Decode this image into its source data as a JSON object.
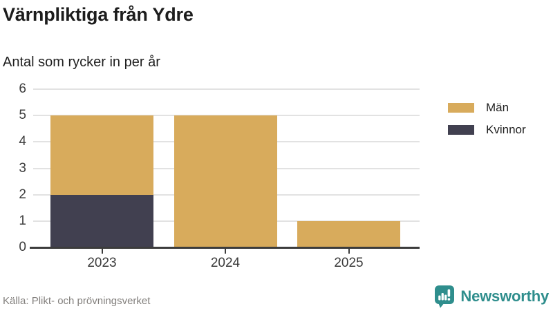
{
  "header": {
    "title": "Värnpliktiga från Ydre",
    "subtitle": "Antal som rycker in per år"
  },
  "footer": {
    "source": "Källa: Plikt- och prövningsverket",
    "logo": {
      "text": "Newsworthy",
      "icon": "newsworthy-bubble-chart-icon",
      "color": "#2f8e8d"
    }
  },
  "colors": {
    "man": "#d8ab5c",
    "kvinnor": "#414050",
    "grid": "#e2e2e2",
    "axis": "#3c3c3c",
    "brand_teal": "#2f8e8d"
  },
  "chart_data": {
    "type": "bar",
    "stacked": true,
    "title": "Värnpliktiga från Ydre",
    "subtitle": "Antal som rycker in per år",
    "categories": [
      "2023",
      "2024",
      "2025"
    ],
    "series": [
      {
        "name": "Män",
        "color": "#d8ab5c",
        "values": [
          3,
          5,
          1
        ]
      },
      {
        "name": "Kvinnor",
        "color": "#414050",
        "values": [
          2,
          0,
          0
        ]
      }
    ],
    "stack_bottom_to_top": [
      "Kvinnor",
      "Män"
    ],
    "totals": [
      5,
      5,
      1
    ],
    "xlabel": "",
    "ylabel": "",
    "ylim": [
      0,
      6
    ],
    "yticks": [
      0,
      1,
      2,
      3,
      4,
      5,
      6
    ],
    "grid": true,
    "legend_position": "right",
    "legend": [
      "Män",
      "Kvinnor"
    ]
  }
}
